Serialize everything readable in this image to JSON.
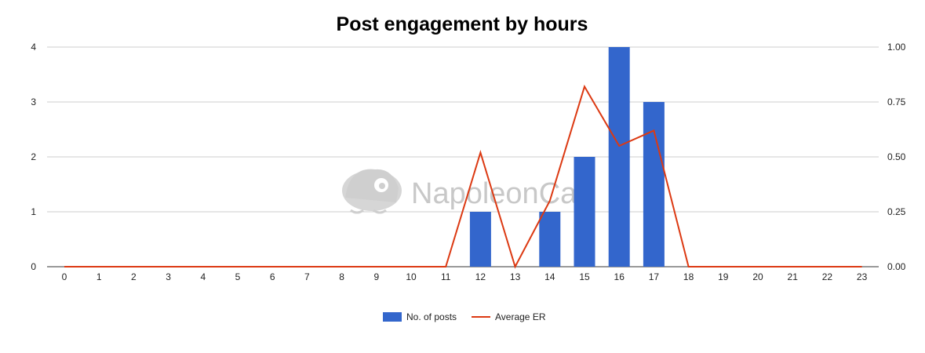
{
  "chart_data": {
    "type": "bar",
    "title": "Post engagement by hours",
    "categories": [
      "0",
      "1",
      "2",
      "3",
      "4",
      "5",
      "6",
      "7",
      "8",
      "9",
      "10",
      "11",
      "12",
      "13",
      "14",
      "15",
      "16",
      "17",
      "18",
      "19",
      "20",
      "21",
      "22",
      "23"
    ],
    "series": [
      {
        "name": "No. of posts",
        "type": "bar",
        "axis": "left",
        "color": "#3366cc",
        "values": [
          0,
          0,
          0,
          0,
          0,
          0,
          0,
          0,
          0,
          0,
          0,
          0,
          1,
          0,
          1,
          2,
          4,
          3,
          0,
          0,
          0,
          0,
          0,
          0
        ]
      },
      {
        "name": "Average ER",
        "type": "line",
        "axis": "right",
        "color": "#dc3912",
        "values": [
          0,
          0,
          0,
          0,
          0,
          0,
          0,
          0,
          0,
          0,
          0,
          0,
          0.52,
          0,
          0.3,
          0.82,
          0.55,
          0.62,
          0,
          0,
          0,
          0,
          0,
          0
        ]
      }
    ],
    "ylim_left": [
      0,
      4
    ],
    "ylim_right": [
      0,
      1
    ],
    "yticks_left": [
      "0",
      "1",
      "2",
      "3",
      "4"
    ],
    "yticks_right": [
      "0.00",
      "0.25",
      "0.50",
      "0.75",
      "1.00"
    ],
    "grid": true,
    "legend_position": "bottom"
  },
  "watermark": {
    "text": "NapoleonCat",
    "icon": "napoleoncat-logo-icon"
  }
}
